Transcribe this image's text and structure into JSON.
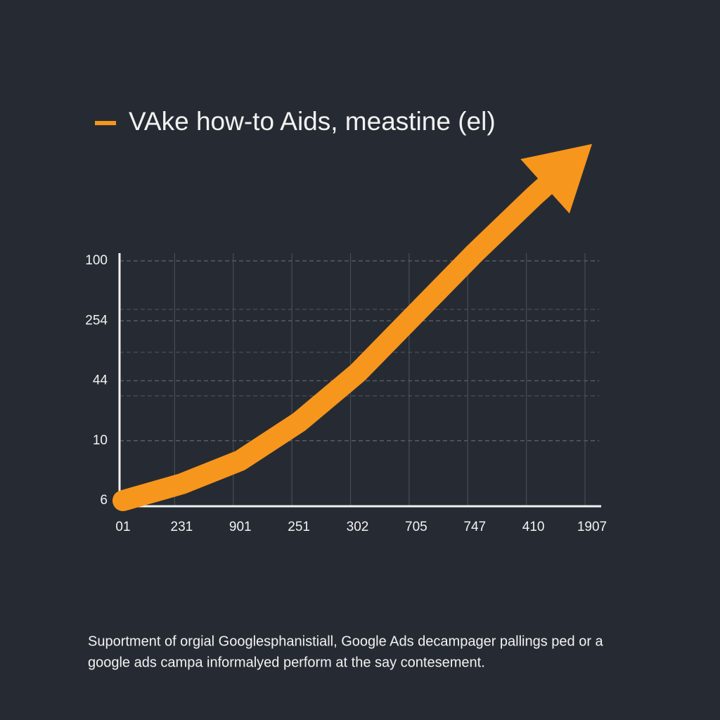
{
  "chart_data": {
    "type": "line",
    "title": "VAke how-to Aids, meastine (el)",
    "categories": [
      "01",
      "231",
      "901",
      "251",
      "302",
      "705",
      "747",
      "410",
      "1907"
    ],
    "y_labels": [
      "6",
      "10",
      "44",
      "254",
      "100"
    ],
    "series": [
      {
        "name": "VAke how-to Aids, meastine (el)",
        "color": "#f7961c",
        "values": [
          0,
          0.28,
          0.67,
          1.31,
          2.13,
          3.13,
          4.13,
          5.07,
          5.95
        ]
      }
    ],
    "grid": true,
    "caption": [
      "Suportment of orgial Googlesphanistiall, Google Ads decampager pallings ped or a",
      "google ads campa informalyed perform at the say contesement."
    ]
  }
}
